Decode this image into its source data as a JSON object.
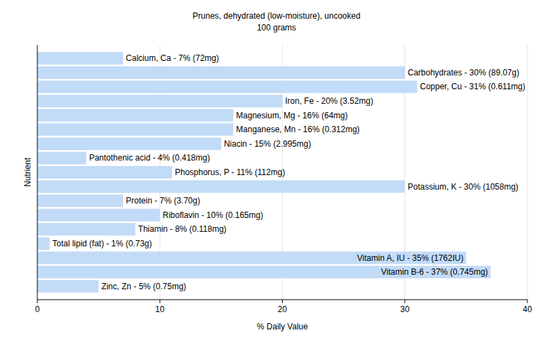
{
  "chart_data": {
    "type": "bar",
    "orientation": "horizontal",
    "title": "Prunes, dehydrated (low-moisture), uncooked",
    "subtitle": "100 grams",
    "xlabel": "% Daily Value",
    "ylabel": "Nutrient",
    "categories": [
      null,
      null,
      null,
      null,
      null,
      null,
      null,
      null,
      null,
      null,
      null,
      null,
      null,
      null,
      null,
      null,
      null
    ],
    "values": [
      7,
      30,
      31,
      20,
      16,
      16,
      15,
      4,
      11,
      30,
      7,
      10,
      8,
      1,
      35,
      37,
      5
    ],
    "value_labels": [
      "Calcium, Ca - 7% (72mg)",
      "Carbohydrates - 30% (89.07g)",
      "Copper, Cu - 31% (0.611mg)",
      "Iron, Fe - 20% (3.52mg)",
      "Magnesium, Mg - 16% (64mg)",
      "Manganese, Mn - 16% (0.312mg)",
      "Niacin - 15% (2.995mg)",
      "Pantothenic acid - 4% (0.418mg)",
      "Phosphorus, P - 11% (112mg)",
      "Potassium, K - 30% (1058mg)",
      "Protein - 7% (3.70g)",
      "Riboflavin - 10% (0.165mg)",
      "Thiamin - 8% (0.118mg)",
      "Total lipid (fat) - 1% (0.73g)",
      "Vitamin A, IU - 35% (1762IU)",
      "Vitamin B-6 - 37% (0.745mg)",
      "Zinc, Zn - 5% (0.75mg)"
    ],
    "data_labels": true,
    "color": "#c2dbf7",
    "xlim": [
      0,
      40
    ],
    "xticks": [
      0,
      10,
      20,
      30,
      40
    ],
    "grid": true,
    "tick_labels": "x"
  }
}
